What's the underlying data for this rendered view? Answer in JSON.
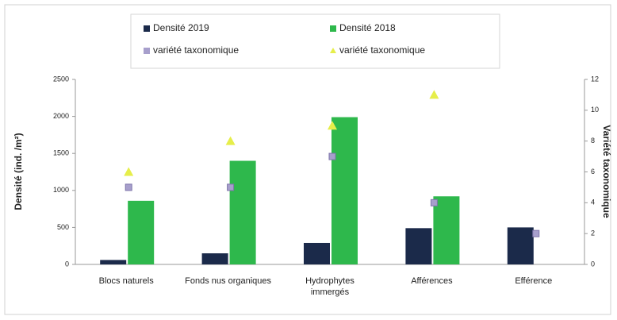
{
  "chart_data": {
    "type": "bar",
    "categories": [
      "Blocs naturels",
      "Fonds nus organiques",
      "Hydrophytes immergés",
      "Afférences",
      "Efférence"
    ],
    "series": [
      {
        "name": "Densité 2019",
        "color": "#1b2a4a",
        "values": [
          60,
          150,
          290,
          490,
          500
        ]
      },
      {
        "name": "Densité 2018",
        "color": "#2eb84c",
        "values": [
          860,
          1400,
          1990,
          920,
          null
        ]
      },
      {
        "name": "variété taxonomique",
        "color": "#a79fcc",
        "marker": "square",
        "axis": "y2",
        "values": [
          5,
          5,
          7,
          4,
          2
        ]
      },
      {
        "name": "variété taxonomique",
        "color": "#e6ee4a",
        "marker": "triangle",
        "axis": "y2",
        "values": [
          6,
          8,
          9,
          11,
          null
        ]
      }
    ],
    "ylabel": "Densité (ind. /m²)",
    "y2label": "Variété taxonomique",
    "ylim": [
      0,
      2500
    ],
    "yticks": [
      0,
      500,
      1000,
      1500,
      2000,
      2500
    ],
    "y2lim": [
      0,
      12
    ],
    "y2ticks": [
      0,
      2,
      4,
      6,
      8,
      10,
      12
    ],
    "legend": "top"
  }
}
